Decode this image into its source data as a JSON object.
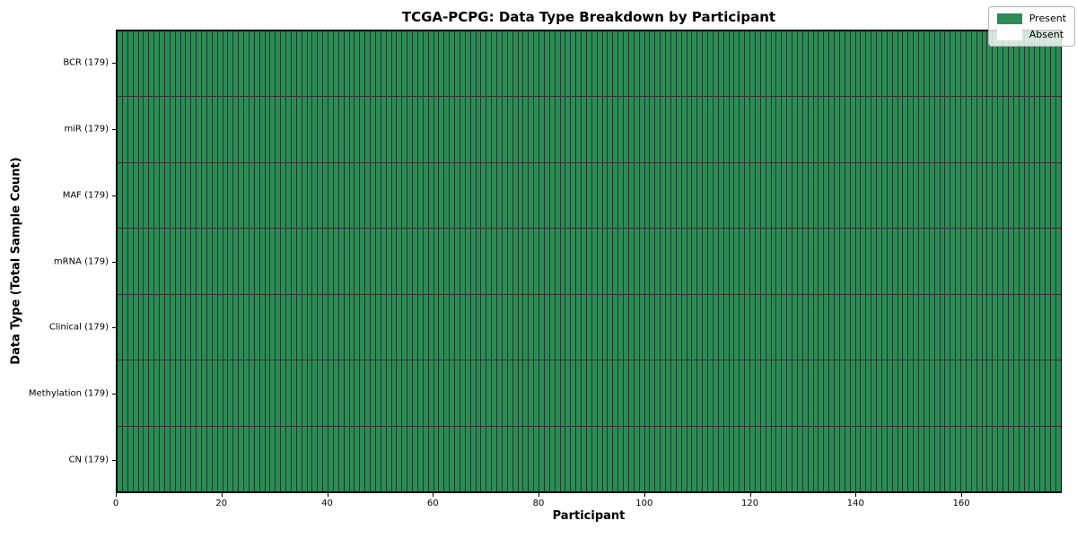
{
  "title": "TCGA-PCPG: Data Type Breakdown by Participant",
  "xlabel": "Participant",
  "ylabel": "Data Type (Total Sample Count)",
  "legend": {
    "present_label": "Present",
    "absent_label": "Absent"
  },
  "colors": {
    "present": "#2e8b57",
    "absent": "#ffffff"
  },
  "chart_data": {
    "type": "heatmap",
    "title": "TCGA-PCPG: Data Type Breakdown by Participant",
    "xlabel": "Participant",
    "ylabel": "Data Type (Total Sample Count)",
    "n_participants": 179,
    "x_range": [
      0,
      179
    ],
    "x_ticks": [
      0,
      20,
      40,
      60,
      80,
      100,
      120,
      140,
      160
    ],
    "grid": "cell-borders",
    "legend_position": "upper right",
    "legend_entries": [
      {
        "label": "Present",
        "color": "#2e8b57"
      },
      {
        "label": "Absent",
        "color": "#ffffff"
      }
    ],
    "rows": [
      {
        "label": "BCR (179)",
        "data_type": "BCR",
        "total_sample_count": 179,
        "present_count": 179,
        "absent_count": 0
      },
      {
        "label": "miR (179)",
        "data_type": "miR",
        "total_sample_count": 179,
        "present_count": 179,
        "absent_count": 0
      },
      {
        "label": "MAF (179)",
        "data_type": "MAF",
        "total_sample_count": 179,
        "present_count": 179,
        "absent_count": 0
      },
      {
        "label": "mRNA (179)",
        "data_type": "mRNA",
        "total_sample_count": 179,
        "present_count": 179,
        "absent_count": 0
      },
      {
        "label": "Clinical (179)",
        "data_type": "Clinical",
        "total_sample_count": 179,
        "present_count": 179,
        "absent_count": 0
      },
      {
        "label": "Methylation (179)",
        "data_type": "Methylation",
        "total_sample_count": 179,
        "present_count": 179,
        "absent_count": 0
      },
      {
        "label": "CN (179)",
        "data_type": "CN",
        "total_sample_count": 179,
        "present_count": 179,
        "absent_count": 0
      }
    ]
  }
}
